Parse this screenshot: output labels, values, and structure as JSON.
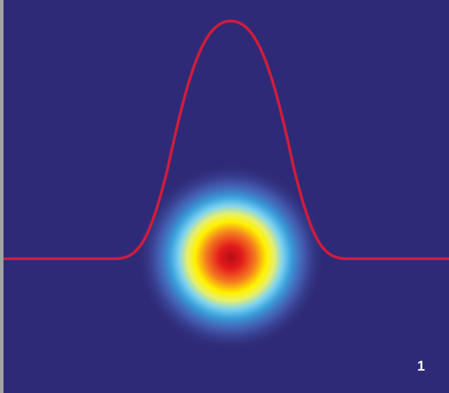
{
  "label": "1"
}
